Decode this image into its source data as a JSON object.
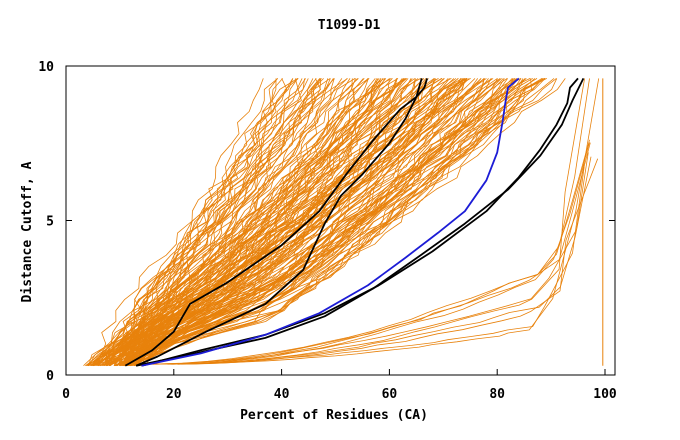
{
  "chart_data": {
    "type": "line",
    "title": "T1099-D1",
    "xlabel": "Percent of Residues (CA)",
    "ylabel": "Distance Cutoff, A",
    "xlim": [
      0,
      100
    ],
    "ylim": [
      0,
      10
    ],
    "x_ticks": [
      "0",
      "20",
      "40",
      "60",
      "80",
      "100"
    ],
    "y_ticks": [
      "0",
      "5",
      "10"
    ],
    "grid": false,
    "colors": {
      "background_models": "#e8820c",
      "highlight_black": "#000000",
      "highlight_blue": "#1c1cd6",
      "axis": "#000000"
    },
    "series": [
      {
        "name": "highlight-black-1",
        "color": "#000000",
        "x": [
          11,
          16,
          20,
          23,
          30,
          40,
          47,
          52,
          57,
          62,
          65,
          66.5,
          67
        ],
        "y": [
          0.3,
          0.8,
          1.4,
          2.3,
          3.0,
          4.2,
          5.3,
          6.5,
          7.6,
          8.6,
          9.0,
          9.3,
          9.6
        ]
      },
      {
        "name": "highlight-black-2",
        "color": "#000000",
        "x": [
          13,
          17,
          26,
          37,
          44,
          48,
          51,
          55,
          60,
          63,
          65,
          66
        ],
        "y": [
          0.3,
          0.6,
          1.4,
          2.3,
          3.4,
          4.9,
          5.8,
          6.5,
          7.5,
          8.3,
          9.0,
          9.6
        ]
      },
      {
        "name": "highlight-black-3",
        "color": "#000000",
        "x": [
          14,
          25,
          37,
          48,
          58,
          68,
          78,
          84,
          88,
          91,
          93,
          93.5,
          95
        ],
        "y": [
          0.3,
          0.8,
          1.3,
          2.0,
          2.9,
          4.0,
          5.3,
          6.4,
          7.3,
          8.1,
          8.8,
          9.3,
          9.6
        ]
      },
      {
        "name": "highlight-black-4",
        "color": "#000000",
        "x": [
          13,
          24,
          37,
          48,
          57,
          66,
          74,
          82,
          88,
          92,
          94,
          96
        ],
        "y": [
          0.3,
          0.7,
          1.2,
          1.9,
          2.8,
          3.9,
          4.9,
          6.0,
          7.1,
          8.1,
          8.9,
          9.6
        ]
      },
      {
        "name": "highlight-blue",
        "color": "#1c1cd6",
        "x": [
          14,
          25,
          37,
          47,
          56,
          63,
          69,
          74,
          78,
          80,
          81,
          81.5,
          82,
          84
        ],
        "y": [
          0.3,
          0.7,
          1.3,
          2.0,
          2.9,
          3.8,
          4.6,
          5.3,
          6.3,
          7.2,
          8.2,
          8.8,
          9.3,
          9.6
        ]
      }
    ]
  }
}
